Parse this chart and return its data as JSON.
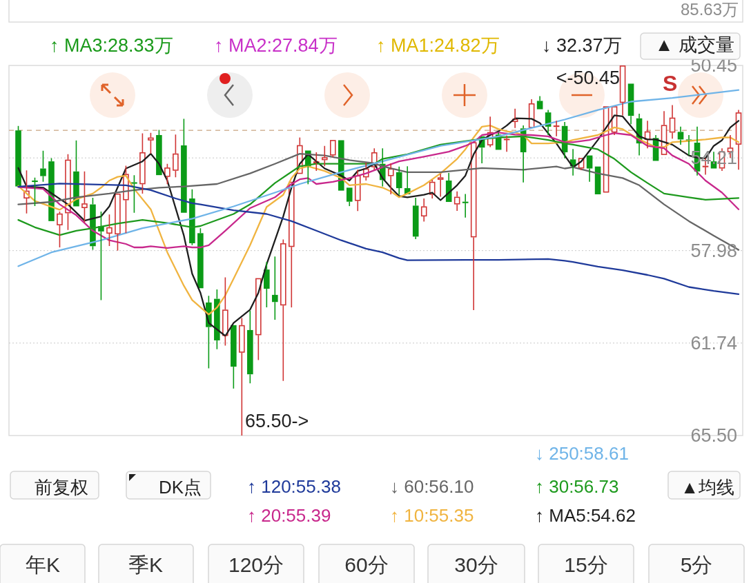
{
  "chart_data": {
    "type": "candlestick",
    "categories": [
      null,
      null,
      null,
      null,
      null,
      null,
      null,
      null,
      null,
      null,
      null,
      null,
      null,
      null,
      null,
      null,
      null,
      null,
      null,
      null,
      null,
      null,
      null,
      null,
      null,
      null,
      null,
      null,
      null,
      null,
      null,
      null,
      null,
      null,
      null,
      null,
      null,
      null,
      null,
      null,
      null,
      null,
      null,
      null,
      null,
      null,
      null,
      null,
      null,
      null,
      null,
      null,
      null,
      null,
      null,
      null,
      null,
      null,
      null,
      null,
      null,
      null,
      null,
      null,
      null,
      null,
      null,
      null,
      null,
      null,
      null,
      null,
      null,
      null,
      null,
      null,
      null,
      null,
      null,
      null,
      null,
      null,
      null,
      null,
      null,
      null,
      null,
      null
    ],
    "ohlc": [
      [
        55.37,
        55.37,
        52.91,
        53.09
      ],
      [
        55.54,
        56.47,
        54.72,
        55.86
      ],
      [
        55.18,
        56.17,
        55.01,
        55.13
      ],
      [
        54.95,
        55.18,
        53.92,
        54.64
      ],
      [
        56.78,
        56.78,
        54.22,
        54.35
      ],
      [
        56.47,
        57.85,
        56.39,
        56.95
      ],
      [
        54.28,
        57.14,
        54.06,
        56.46
      ],
      [
        56.18,
        56.18,
        53.5,
        54.76
      ],
      [
        56.06,
        56.83,
        54.76,
        56.25
      ],
      [
        57.8,
        57.95,
        55.83,
        56.1
      ],
      [
        57.2,
        59.99,
        56.39,
        56.98
      ],
      [
        57.03,
        57.79,
        56.51,
        57.29
      ],
      [
        55.66,
        57.98,
        55.62,
        57.32
      ],
      [
        54.86,
        57.27,
        54.53,
        55.93
      ],
      [
        55.25,
        56.44,
        54.91,
        55.2
      ],
      [
        53.98,
        55.66,
        53.21,
        55.28
      ],
      [
        53.38,
        54.04,
        53.19,
        53.5
      ],
      [
        54.91,
        54.91,
        53.07,
        53.28
      ],
      [
        54.6,
        55.28,
        54.45,
        54.98
      ],
      [
        54.03,
        55.0,
        53.26,
        54.73
      ],
      [
        56.44,
        56.44,
        52.62,
        53.7
      ],
      [
        57.68,
        57.76,
        55.49,
        55.86
      ],
      [
        59.51,
        59.56,
        57.07,
        57.27
      ],
      [
        61.09,
        62.77,
        59.82,
        60.09
      ],
      [
        61.63,
        61.99,
        59.56,
        59.94
      ],
      [
        60.38,
        61.84,
        59.07,
        61.45
      ],
      [
        62.7,
        63.59,
        61.01,
        61.01
      ],
      [
        61.01,
        65.5,
        60.72,
        62.13
      ],
      [
        63.01,
        63.38,
        60.43,
        61.21
      ],
      [
        59.1,
        62.43,
        59.1,
        61.42
      ],
      [
        59.53,
        60.29,
        58.44,
        58.75
      ],
      [
        60.07,
        60.79,
        58.22,
        59.78
      ],
      [
        57.68,
        63.28,
        57.53,
        60.21
      ],
      [
        55.18,
        60.29,
        55.13,
        57.83
      ],
      [
        53.69,
        54.89,
        53.38,
        54.86
      ],
      [
        54.56,
        55.28,
        53.86,
        53.91
      ],
      [
        54.35,
        54.74,
        53.98,
        54.43
      ],
      [
        54.18,
        54.55,
        53.72,
        54.3
      ],
      [
        53.48,
        54.18,
        53.48,
        54.11
      ],
      [
        55.54,
        55.57,
        53.48,
        53.49
      ],
      [
        55.99,
        56.17,
        55.37,
        55.42
      ],
      [
        54.92,
        56.37,
        54.69,
        55.96
      ],
      [
        54.64,
        55.13,
        54.4,
        55.0
      ],
      [
        53.98,
        54.69,
        53.82,
        54.59
      ],
      [
        55.11,
        55.37,
        53.82,
        54.45
      ],
      [
        54.64,
        55.69,
        54.43,
        54.95
      ],
      [
        55.44,
        55.71,
        54.56,
        54.79
      ],
      [
        55.69,
        55.69,
        54.55,
        55.44
      ],
      [
        57.41,
        57.51,
        55.83,
        56.15
      ],
      [
        56.18,
        56.8,
        55.86,
        56.59
      ],
      [
        55.18,
        55.86,
        55.1,
        55.71
      ],
      [
        55.0,
        55.79,
        54.86,
        55.1
      ],
      [
        56.0,
        56.05,
        54.82,
        55.13
      ],
      [
        55.79,
        56.36,
        55.57,
        56.1
      ],
      [
        56.02,
        56.64,
        55.68,
        55.99
      ],
      [
        53.57,
        60.4,
        53.57,
        57.44
      ],
      [
        53.79,
        54.43,
        53.28,
        53.33
      ],
      [
        53.16,
        53.77,
        52.53,
        53.7
      ],
      [
        53.88,
        53.91,
        53.18,
        53.26
      ],
      [
        53.43,
        53.96,
        53.3,
        53.48
      ],
      [
        52.62,
        52.99,
        52.21,
        52.75
      ],
      [
        53.98,
        55.21,
        52.89,
        53.01
      ],
      [
        51.99,
        53.04,
        51.82,
        52.99
      ],
      [
        52.23,
        52.26,
        51.7,
        51.89
      ],
      [
        52.94,
        53.28,
        52.26,
        52.36
      ],
      [
        52.89,
        53.33,
        52.7,
        52.95
      ],
      [
        53.98,
        54.23,
        52.75,
        52.91
      ],
      [
        54.55,
        54.93,
        53.85,
        54.27
      ],
      [
        54.21,
        54.71,
        54.21,
        54.64
      ],
      [
        54.64,
        55.18,
        54.06,
        54.11
      ],
      [
        55.69,
        55.69,
        54.56,
        54.56
      ],
      [
        52.11,
        55.62,
        52.11,
        55.62
      ],
      [
        52.11,
        53.28,
        52.11,
        53.18
      ],
      [
        50.45,
        52.48,
        50.45,
        51.97
      ],
      [
        52.5,
        52.84,
        51.19,
        51.19
      ],
      [
        53.62,
        54.11,
        52.41,
        52.6
      ],
      [
        53.13,
        53.82,
        52.7,
        53.48
      ],
      [
        54.33,
        54.35,
        53.28,
        53.4
      ],
      [
        52.87,
        54.11,
        52.31,
        54.09
      ],
      [
        52.57,
        53.43,
        52.06,
        53.18
      ],
      [
        53.46,
        53.67,
        52.94,
        53.15
      ],
      [
        53.5,
        54.11,
        53.28,
        53.46
      ],
      [
        54.76,
        54.93,
        52.94,
        53.59
      ],
      [
        54.53,
        54.89,
        54.23,
        54.58
      ],
      [
        54.64,
        54.69,
        53.96,
        54.35
      ],
      [
        53.94,
        54.74,
        53.82,
        54.64
      ],
      [
        53.79,
        54.21,
        53.28,
        53.98
      ],
      [
        52.36,
        54.69,
        52.26,
        53.67
      ]
    ],
    "series": [
      {
        "type": "line",
        "name": "↑ MA5:54.62",
        "color": "#1e1e1e",
        "values": [
          54.62,
          55.37,
          null,
          55.42,
          null,
          null,
          56.1,
          null,
          56.76,
          null,
          56.59,
          56.18,
          null,
          54.64,
          null,
          54.35,
          54.04,
          54.45,
          55.13,
          null,
          57.37,
          58.92,
          59.7,
          60.92,
          null,
          61.45,
          60.92,
          null,
          60.38,
          59.7,
          58.53,
          null,
          56.59,
          55.42,
          54.45,
          54.06,
          54.35,
          54.64,
          null,
          54.93,
          55.13,
          54.74,
          54.64,
          54.45,
          55.03,
          55.42,
          55.76,
          55.81,
          null,
          55.71,
          55.62,
          55.93,
          null,
          55.32,
          54.93,
          54.06,
          53.48,
          53.28,
          53.13,
          52.89,
          52.6,
          null,
          52.62,
          52.79,
          null,
          53.62,
          54.11,
          54.59,
          54.35,
          null,
          53.48,
          null,
          52.48,
          52.52,
          null,
          53.33,
          53.46,
          53.46,
          null,
          53.67,
          null,
          54.11,
          54.2,
          54.23,
          53.72,
          53.49,
          52.97,
          52.7
        ]
      },
      {
        "type": "line",
        "name": "↑ 10:55.35",
        "color": "#f0b440",
        "values": [
          55.35,
          null,
          55.96,
          null,
          56.2,
          56.32,
          null,
          55.89,
          null,
          55.66,
          55.42,
          55.13,
          54.98,
          54.93,
          55.47,
          null,
          56.3,
          null,
          58.05,
          58.73,
          59.41,
          59.99,
          null,
          60.58,
          60.29,
          59.8,
          59.12,
          null,
          57.76,
          null,
          56.2,
          null,
          55.71,
          55.03,
          54.64,
          54.55,
          null,
          54.74,
          null,
          55.03,
          55.32,
          null,
          55.27,
          null,
          55.42,
          55.57,
          55.81,
          55.66,
          null,
          55.32,
          null,
          54.84,
          null,
          54.25,
          53.86,
          53.38,
          52.94,
          52.89,
          53.04,
          53.13,
          53.18,
          53.28,
          53.62,
          null,
          53.62,
          null,
          53.57,
          53.48,
          null,
          null,
          53.28,
          null,
          52.97,
          53.04,
          null,
          53.46,
          null,
          53.77,
          53.77,
          53.57,
          null,
          53.52,
          null,
          53.46,
          null,
          53.38,
          53.38,
          53.57
        ]
      },
      {
        "type": "line",
        "name": "↑ 20:55.39",
        "color": "#c8288c",
        "values": [
          55.39,
          null,
          null,
          55.47,
          null,
          56.1,
          null,
          56.54,
          null,
          57.17,
          null,
          57.56,
          null,
          57.71,
          57.85,
          57.85,
          57.8,
          null,
          57.87,
          null,
          57.8,
          57.85,
          57.85,
          57.76,
          null,
          57.17,
          null,
          null,
          56.25,
          null,
          null,
          55.81,
          null,
          55.27,
          55.08,
          55.03,
          55.27,
          null,
          55.18,
          null,
          55.03,
          null,
          54.84,
          null,
          54.59,
          null,
          54.35,
          null,
          null,
          54.16,
          null,
          null,
          53.96,
          null,
          53.72,
          53.57,
          53.28,
          null,
          53.18,
          null,
          53.26,
          null,
          53.28,
          null,
          53.33,
          null,
          53.57,
          53.57,
          null,
          53.48,
          null,
          53.28,
          53.2,
          null,
          53.28,
          null,
          53.72,
          null,
          53.82,
          54.11,
          null,
          54.45,
          null,
          55.13,
          null,
          55.62,
          null,
          56.3
        ]
      },
      {
        "type": "line",
        "name": "↑ 30:56.73",
        "color": "#1e9a1e",
        "values": [
          56.73,
          null,
          57.03,
          null,
          null,
          57.35,
          null,
          57.17,
          null,
          57.07,
          null,
          null,
          56.88,
          null,
          null,
          56.73,
          null,
          null,
          56.86,
          null,
          null,
          57.03,
          56.98,
          null,
          null,
          null,
          56.49,
          null,
          56.1,
          null,
          null,
          55.23,
          null,
          null,
          54.55,
          null,
          54.45,
          null,
          null,
          null,
          54.45,
          null,
          null,
          54.45,
          54.25,
          null,
          null,
          54.06,
          null,
          null,
          null,
          53.67,
          null,
          null,
          null,
          53.48,
          null,
          null,
          53.38,
          null,
          null,
          53.33,
          null,
          null,
          53.48,
          null,
          53.62,
          53.67,
          null,
          null,
          53.86,
          null,
          54.25,
          null,
          54.79,
          null,
          55.23,
          null,
          55.66,
          null,
          null,
          55.81,
          null,
          55.91,
          null,
          null,
          null,
          55.84
        ]
      },
      {
        "type": "line",
        "name": "↓ 60:56.10",
        "color": "#666666",
        "values": [
          56.1,
          null,
          null,
          null,
          56.0,
          null,
          null,
          55.81,
          null,
          null,
          null,
          55.66,
          null,
          null,
          55.52,
          null,
          null,
          55.42,
          null,
          null,
          55.37,
          null,
          null,
          null,
          55.27,
          null,
          null,
          null,
          54.84,
          null,
          null,
          54.45,
          null,
          null,
          54.04,
          null,
          null,
          54.11,
          null,
          null,
          54.3,
          null,
          null,
          54.43,
          54.55,
          null,
          null,
          54.79,
          null,
          null,
          null,
          54.79,
          null,
          null,
          null,
          null,
          54.62,
          null,
          null,
          null,
          null,
          54.69,
          null,
          null,
          null,
          54.56,
          54.64,
          54.59,
          null,
          null,
          54.84,
          null,
          null,
          55.03,
          null,
          55.32,
          null,
          null,
          56.1,
          null,
          null,
          56.78,
          null,
          null,
          57.37,
          null,
          null,
          57.95
        ]
      },
      {
        "type": "line",
        "name": "↑ 120:55.38",
        "color": "#1f3a9a",
        "values": [
          55.38,
          null,
          null,
          null,
          null,
          55.25,
          null,
          null,
          null,
          55.29,
          null,
          null,
          null,
          55.32,
          null,
          null,
          55.52,
          null,
          null,
          55.86,
          null,
          56.05,
          56.1,
          null,
          null,
          null,
          56.34,
          null,
          null,
          null,
          56.49,
          null,
          null,
          56.78,
          null,
          null,
          57.17,
          null,
          null,
          57.56,
          null,
          null,
          57.9,
          null,
          58.05,
          null,
          58.29,
          58.37,
          null,
          null,
          null,
          null,
          null,
          null,
          58.36,
          null,
          null,
          null,
          58.36,
          null,
          null,
          null,
          null,
          null,
          58.32,
          null,
          58.39,
          58.44,
          null,
          null,
          58.63,
          null,
          null,
          58.78,
          null,
          null,
          58.97,
          null,
          59.12,
          null,
          null,
          59.46,
          null,
          null,
          59.62,
          null,
          null,
          59.75
        ]
      },
      {
        "type": "line",
        "name": "↓ 250:58.61",
        "color": "#6fb4e8",
        "values": [
          58.61,
          null,
          null,
          null,
          58.05,
          null,
          null,
          null,
          null,
          null,
          57.56,
          null,
          null,
          null,
          null,
          57.07,
          null,
          null,
          null,
          null,
          null,
          56.68,
          null,
          null,
          null,
          null,
          56.18,
          null,
          null,
          null,
          null,
          55.62,
          null,
          null,
          55.27,
          null,
          null,
          null,
          null,
          54.79,
          null,
          null,
          null,
          null,
          54.35,
          null,
          null,
          null,
          null,
          null,
          null,
          53.72,
          null,
          null,
          null,
          null,
          null,
          null,
          53.33,
          null,
          null,
          null,
          null,
          null,
          null,
          null,
          52.65,
          null,
          null,
          null,
          52.26,
          null,
          null,
          null,
          51.92,
          null,
          null,
          null,
          null,
          51.77,
          null,
          null,
          null,
          null,
          null,
          null,
          null,
          51.45
        ]
      }
    ],
    "ylim": [
      65.5,
      50.45
    ],
    "yticks": [
      50.45,
      54.21,
      57.98,
      61.74,
      {
        "value": 65.5,
        "label": "65.50"
      }
    ],
    "grid": "y",
    "legend": "bottom",
    "ref_lines": [
      {
        "axis": "y",
        "value": 53.09,
        "color": "#c8a480",
        "line_style": "dashed"
      }
    ],
    "annotations": [
      "85.63万",
      "▲ 成交量",
      "↓ 32.37万",
      "↑ MA1:24.82万",
      "↑ MA2:27.84万",
      "↑ MA3:28.33万",
      "S",
      "<-50.45",
      "65.50->",
      "▲均线",
      "DK点",
      "前复权",
      "年K",
      "季K",
      "120分",
      "60分",
      "30分",
      "15分",
      "5分"
    ]
  }
}
